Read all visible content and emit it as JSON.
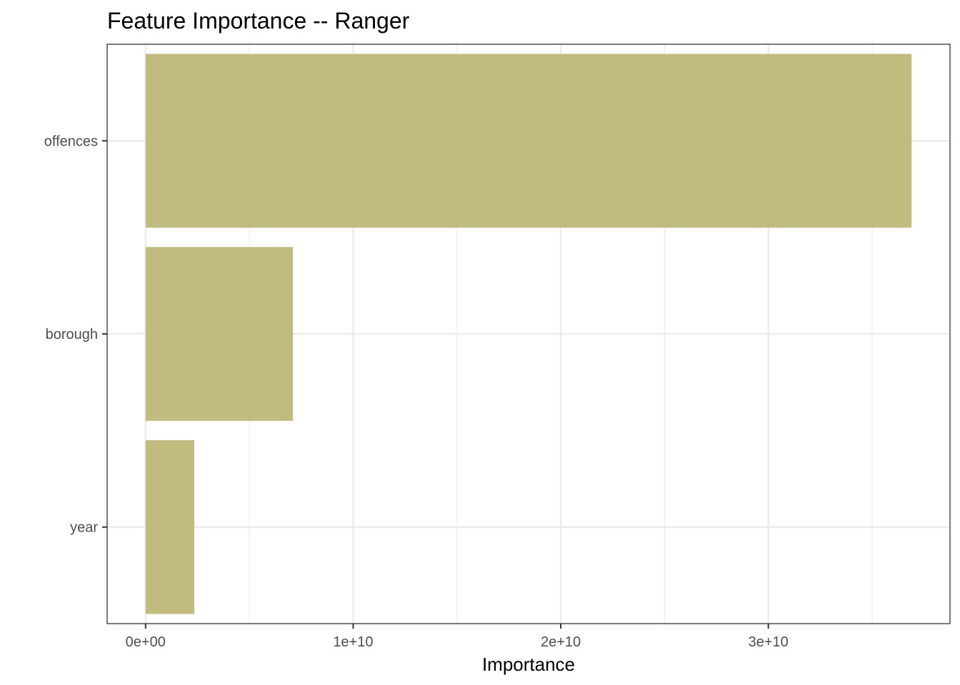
{
  "chart_data": {
    "type": "bar",
    "orientation": "horizontal",
    "title": "Feature Importance -- Ranger",
    "xlabel": "Importance",
    "ylabel": "",
    "categories": [
      "offences",
      "borough",
      "year"
    ],
    "values": [
      36900000000,
      7100000000,
      2350000000
    ],
    "xlim": [
      -1850000000,
      38750000000
    ],
    "x_ticks": [
      0,
      10000000000,
      20000000000,
      30000000000
    ],
    "x_tick_labels": [
      "0e+00",
      "1e+10",
      "2e+10",
      "3e+10"
    ],
    "bar_color": "#c1bb7f",
    "grid": true
  }
}
